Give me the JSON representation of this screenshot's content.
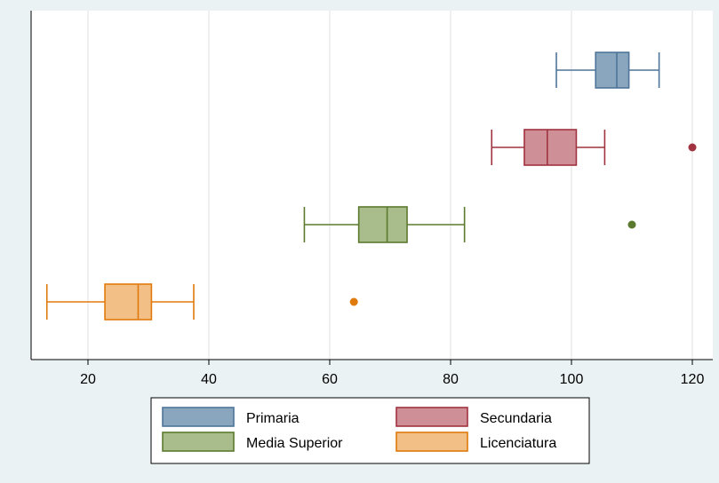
{
  "chart_data": {
    "type": "box",
    "orientation": "horizontal",
    "title": "",
    "xlabel": "",
    "ylabel": "",
    "xlim": [
      10,
      122
    ],
    "x_ticks": [
      20,
      40,
      60,
      80,
      100,
      120
    ],
    "grid": "vertical",
    "legend_position": "bottom",
    "series": [
      {
        "name": "Primaria",
        "color": "#4e7599",
        "fill": "#8aa6bf",
        "whisker_low": 97.5,
        "q1": 104.0,
        "median": 107.5,
        "q3": 109.5,
        "whisker_high": 114.5,
        "outliers": []
      },
      {
        "name": "Secundaria",
        "color": "#a0333f",
        "fill": "#cf8f97",
        "whisker_low": 86.8,
        "q1": 92.2,
        "median": 96.0,
        "q3": 100.8,
        "whisker_high": 105.5,
        "outliers": [
          120.0
        ]
      },
      {
        "name": "Media Superior",
        "color": "#5c7a2e",
        "fill": "#a9bd8c",
        "whisker_low": 55.8,
        "q1": 64.8,
        "median": 69.5,
        "q3": 72.8,
        "whisker_high": 82.3,
        "outliers": [
          110.0
        ]
      },
      {
        "name": "Licenciatura",
        "color": "#e07a0c",
        "fill": "#f2bf86",
        "whisker_low": 13.2,
        "q1": 22.8,
        "median": 28.3,
        "q3": 30.5,
        "whisker_high": 37.5,
        "outliers": [
          64.0
        ]
      }
    ]
  }
}
